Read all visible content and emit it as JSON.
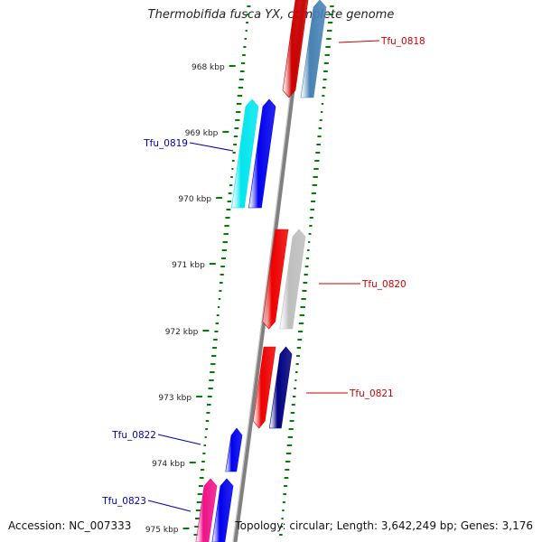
{
  "title": "Thermobifida fusca YX, complete genome",
  "footer": {
    "accession": "Accession: NC_007333",
    "summary": "Topology: circular; Length: 3,642,249 bp; Genes: 3,176"
  },
  "kbp_ticks": [
    {
      "label": "968 kbp"
    },
    {
      "label": "969 kbp"
    },
    {
      "label": "970 kbp"
    },
    {
      "label": "971 kbp"
    },
    {
      "label": "972 kbp"
    },
    {
      "label": "973 kbp"
    },
    {
      "label": "974 kbp"
    },
    {
      "label": "975 kbp"
    }
  ],
  "genes": [
    {
      "name": "Tfu_0818",
      "strand": "forward",
      "color": "#cc0000",
      "partner_color": "#4682b4"
    },
    {
      "name": "Tfu_0819",
      "strand": "reverse",
      "color": "#0000ee",
      "partner_color": "#00e5ee"
    },
    {
      "name": "Tfu_0820",
      "strand": "forward",
      "color": "#ee0000",
      "partner_color": "#bebebe"
    },
    {
      "name": "Tfu_0821",
      "strand": "forward",
      "color": "#ee0000",
      "partner_color": "#000080"
    },
    {
      "name": "Tfu_0822",
      "strand": "reverse",
      "color": "#0000ee",
      "partner_color": null
    },
    {
      "name": "Tfu_0823",
      "strand": "reverse",
      "color": "#0000ee",
      "partner_color": "#ee1289"
    }
  ],
  "colors": {
    "forward_label": "#cc0000",
    "reverse_label": "#0000aa",
    "backbone": "#808080",
    "gc_dots": "#008000"
  }
}
